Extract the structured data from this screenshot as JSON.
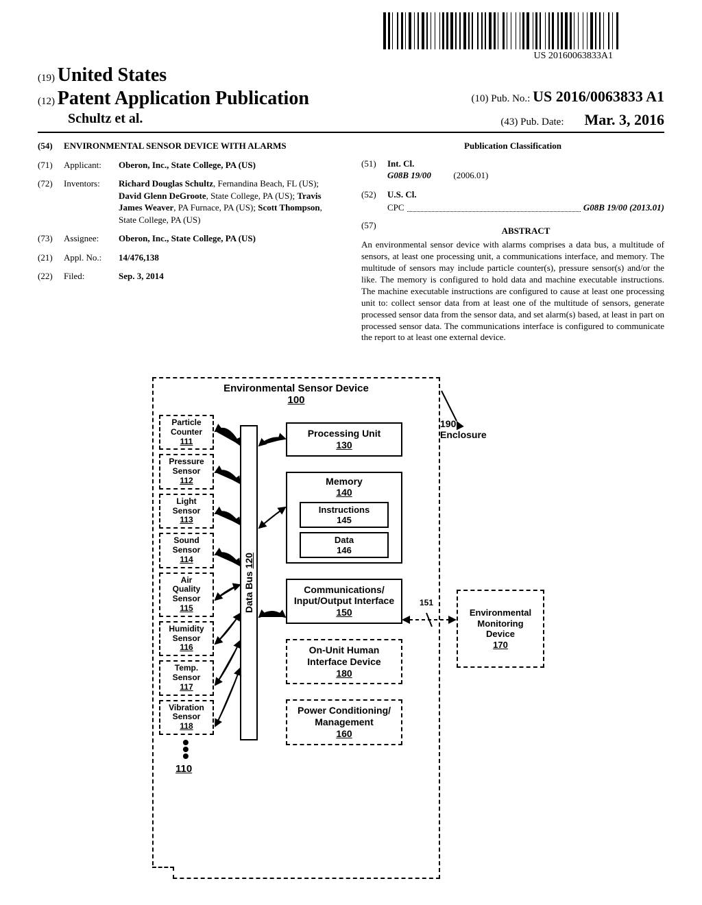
{
  "barcode_text": "US 20160063833A1",
  "header": {
    "country_prefix": "(19)",
    "country": "United States",
    "pap_prefix": "(12)",
    "pap": "Patent Application Publication",
    "authors": "Schultz et al.",
    "pubno_prefix": "(10)",
    "pubno_label": "Pub. No.:",
    "pubno": "US 2016/0063833 A1",
    "pubdate_prefix": "(43)",
    "pubdate_label": "Pub. Date:",
    "pubdate": "Mar. 3, 2016"
  },
  "left": {
    "f54_num": "(54)",
    "f54_val": "ENVIRONMENTAL SENSOR DEVICE WITH ALARMS",
    "f71_num": "(71)",
    "f71_label": "Applicant:",
    "f71_val": "Oberon, Inc., State College, PA (US)",
    "f72_num": "(72)",
    "f72_label": "Inventors:",
    "f72_val": "Richard Douglas Schultz, Fernandina Beach, FL (US); David Glenn DeGroote, State College, PA (US); Travis James Weaver, PA Furnace, PA (US); Scott Thompson, State College, PA (US)",
    "f73_num": "(73)",
    "f73_label": "Assignee:",
    "f73_val": "Oberon, Inc., State College, PA (US)",
    "f21_num": "(21)",
    "f21_label": "Appl. No.:",
    "f21_val": "14/476,138",
    "f22_num": "(22)",
    "f22_label": "Filed:",
    "f22_val": "Sep. 3, 2014"
  },
  "right": {
    "classif_hdr": "Publication Classification",
    "f51_num": "(51)",
    "f51_label": "Int. Cl.",
    "f51_code": "G08B 19/00",
    "f51_date": "(2006.01)",
    "f52_num": "(52)",
    "f52_label": "U.S. Cl.",
    "f52_cpc": "CPC",
    "f52_val": "G08B 19/00 (2013.01)",
    "f57_num": "(57)",
    "abstract_hdr": "ABSTRACT",
    "abstract": "An environmental sensor device with alarms comprises a data bus, a multitude of sensors, at least one processing unit, a communications interface, and memory. The multitude of sensors may include particle counter(s), pressure sensor(s) and/or the like. The memory is configured to hold data and machine executable instructions. The machine executable instructions are configured to cause at least one processing unit to: collect sensor data from at least one of the multitude of sensors, generate processed sensor data from the sensor data, and set alarm(s) based, at least in part on processed sensor data. The communications interface is configured to communicate the report to at least one external device."
  },
  "diagram": {
    "title": "Environmental Sensor Device",
    "title_num": "100",
    "enclosure_num": "190",
    "enclosure_label": "Enclosure",
    "sensors_num": "110",
    "sensors": [
      {
        "label": "Particle Counter",
        "num": "111"
      },
      {
        "label": "Pressure Sensor",
        "num": "112"
      },
      {
        "label": "Light Sensor",
        "num": "113"
      },
      {
        "label": "Sound Sensor",
        "num": "114"
      },
      {
        "label": "Air Quality Sensor",
        "num": "115"
      },
      {
        "label": "Humidity Sensor",
        "num": "116"
      },
      {
        "label": "Temp. Sensor",
        "num": "117"
      },
      {
        "label": "Vibration Sensor",
        "num": "118"
      }
    ],
    "databus_label": "Data Bus",
    "databus_num": "120",
    "proc_label": "Processing Unit",
    "proc_num": "130",
    "mem_label": "Memory",
    "mem_num": "140",
    "instr_label": "Instructions",
    "instr_num": "145",
    "data_label": "Data",
    "data_num": "146",
    "comm_label": "Communications/ Input/Output Interface",
    "comm_num": "150",
    "comm_link_num": "151",
    "hid_label": "On-Unit Human Interface Device",
    "hid_num": "180",
    "power_label": "Power Conditioning/ Management",
    "power_num": "160",
    "ext_label": "Environmental Monitoring Device",
    "ext_num": "170",
    "colors": {
      "stroke": "#000000",
      "bg": "#ffffff"
    }
  }
}
